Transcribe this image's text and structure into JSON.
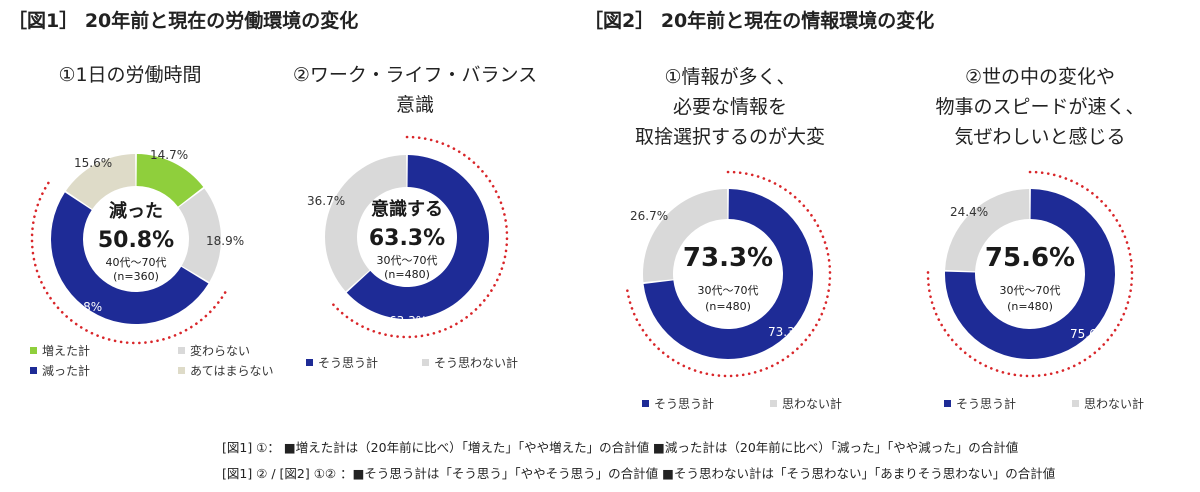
{
  "figure1": {
    "title": "［図1］ 20年前と現在の労働環境の変化"
  },
  "figure2": {
    "title": "［図2］ 20年前と現在の情報環境の変化"
  },
  "colors": {
    "blue": "#1e2b96",
    "green": "#8fcf3c",
    "gray": "#d9d9d9",
    "beige": "#dedbc8",
    "dots": "#d9262a"
  },
  "chart_data": [
    {
      "type": "pie",
      "subtitle": "①1日の労働時間",
      "center": {
        "label": "減った",
        "value": "50.8%",
        "note1": "40代～70代",
        "note2": "(n=360)"
      },
      "slices": [
        {
          "name": "増えた計",
          "value": 14.7,
          "label": "14.7%",
          "color": "#8fcf3c"
        },
        {
          "name": "変わらない",
          "value": 18.9,
          "label": "18.9%",
          "color": "#d9d9d9"
        },
        {
          "name": "減った計",
          "value": 50.8,
          "label": "50.8%",
          "color": "#1e2b96"
        },
        {
          "name": "あてはまらない",
          "value": 15.6,
          "label": "15.6%",
          "color": "#dedbc8"
        }
      ],
      "highlight": "減った計",
      "legend": [
        "増えた計",
        "変わらない",
        "減った計",
        "あてはまらない"
      ]
    },
    {
      "type": "pie",
      "subtitle": "②ワーク・ライフ・バランス\n意識",
      "center": {
        "label": "意識する",
        "value": "63.3%",
        "note1": "30代～70代",
        "note2": "(n=480)"
      },
      "slices": [
        {
          "name": "そう思う計",
          "value": 63.3,
          "label": "63.3%",
          "color": "#1e2b96"
        },
        {
          "name": "そう思わない計",
          "value": 36.7,
          "label": "36.7%",
          "color": "#d9d9d9"
        }
      ],
      "highlight": "そう思う計",
      "legend": [
        "そう思う計",
        "そう思わない計"
      ]
    },
    {
      "type": "pie",
      "subtitle": "①情報が多く、\n必要な情報を\n取捨選択するのが大変",
      "center": {
        "label": "",
        "value": "73.3%",
        "note1": "30代～70代",
        "note2": "(n=480)"
      },
      "slices": [
        {
          "name": "そう思う計",
          "value": 73.3,
          "label": "73.3%",
          "color": "#1e2b96"
        },
        {
          "name": "思わない計",
          "value": 26.7,
          "label": "26.7%",
          "color": "#d9d9d9"
        }
      ],
      "highlight": "そう思う計",
      "legend": [
        "そう思う計",
        "思わない計"
      ]
    },
    {
      "type": "pie",
      "subtitle": "②世の中の変化や\n物事のスピードが速く、\n気ぜわしいと感じる",
      "center": {
        "label": "",
        "value": "75.6%",
        "note1": "30代～70代",
        "note2": "(n=480)"
      },
      "slices": [
        {
          "name": "そう思う計",
          "value": 75.6,
          "label": "75.6%",
          "color": "#1e2b96"
        },
        {
          "name": "思わない計",
          "value": 24.4,
          "label": "24.4%",
          "color": "#d9d9d9"
        }
      ],
      "highlight": "そう思う計",
      "legend": [
        "そう思う計",
        "思わない計"
      ]
    }
  ],
  "footnotes": {
    "line1": "[図1] ①：  ■増えた計は（20年前に比べ）「増えた」「やや増えた」の合計値  ■減った計は（20年前に比べ）「減った」「やや減った」の合計値",
    "line2": "[図1] ② / [図2] ①② ：■そう思う計は「そう思う」「ややそう思う」の合計値  ■そう思わない計は「そう思わない」「あまりそう思わない」の合計値"
  }
}
